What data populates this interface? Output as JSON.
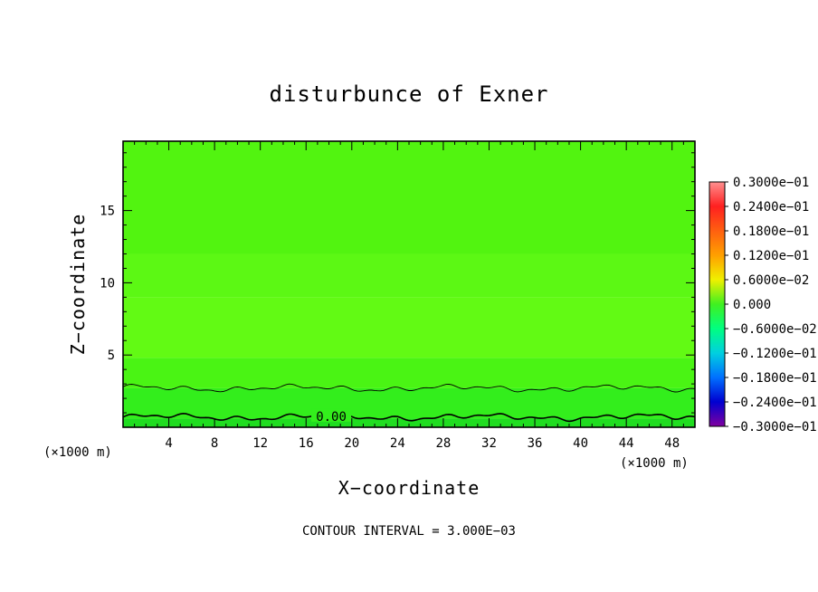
{
  "chart_data": {
    "type": "heatmap",
    "title": "disturbunce of Exner",
    "xlabel": "X−coordinate",
    "ylabel": "Z−coordinate",
    "x_unit": "(×1000 m)",
    "y_unit": "(×1000 m)",
    "xlim": [
      0,
      50
    ],
    "ylim": [
      0,
      19.8
    ],
    "x_ticks": [
      4,
      8,
      12,
      16,
      20,
      24,
      28,
      32,
      36,
      40,
      44,
      48
    ],
    "x_tick_labels": [
      "4",
      "8",
      "12",
      "16",
      "20",
      "24",
      "28",
      "32",
      "36",
      "40",
      "44",
      "48"
    ],
    "y_ticks": [
      5,
      10,
      15
    ],
    "y_tick_labels": [
      "5",
      "10",
      "15"
    ],
    "contour_interval_text": "CONTOUR INTERVAL = 3.000E−03",
    "contour_label": "0.00",
    "contours": [
      {
        "level": 0.0,
        "z_mean": 0.7
      },
      {
        "level": 0.003,
        "z_mean": 2.7
      }
    ],
    "field_bands": [
      {
        "z_from": 0.0,
        "z_to": 0.6,
        "color": "#20dd20"
      },
      {
        "z_from": 0.6,
        "z_to": 2.7,
        "color": "#33ee1c"
      },
      {
        "z_from": 2.7,
        "z_to": 4.8,
        "color": "#4af414"
      },
      {
        "z_from": 4.8,
        "z_to": 9.0,
        "color": "#62fa14"
      },
      {
        "z_from": 9.0,
        "z_to": 12.0,
        "color": "#5cf814"
      },
      {
        "z_from": 12.0,
        "z_to": 19.8,
        "color": "#52f410"
      }
    ],
    "colorbar": {
      "labels": [
        "0.3000e−01",
        "0.2400e−01",
        "0.1800e−01",
        "0.1200e−01",
        "0.6000e−02",
        "0.000",
        "−0.6000e−02",
        "−0.1200e−01",
        "−0.1800e−01",
        "−0.2400e−01",
        "−0.3000e−01"
      ],
      "values": [
        0.03,
        0.024,
        0.018,
        0.012,
        0.006,
        0.0,
        -0.006,
        -0.012,
        -0.018,
        -0.024,
        -0.03
      ],
      "colors": [
        "#ff9090",
        "#ff2020",
        "#ff6010",
        "#ffa000",
        "#f0f000",
        "#40f020",
        "#00ff80",
        "#00d0e0",
        "#0070ff",
        "#0000d0",
        "#8000a0"
      ]
    },
    "grid": false,
    "legend": "right"
  }
}
